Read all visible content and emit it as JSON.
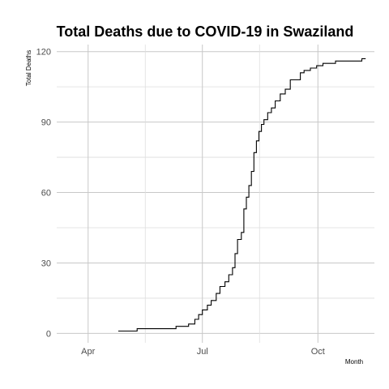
{
  "chart_data": {
    "type": "line",
    "title": "Total Deaths due to COVID-19 in Swaziland",
    "xlabel": "Month",
    "ylabel": "Total Deaths",
    "x_tick_labels": [
      "Apr",
      "Jul",
      "Oct"
    ],
    "x_tick_dates": [
      "2020-04-01",
      "2020-07-01",
      "2020-10-01"
    ],
    "y_ticks": [
      0,
      30,
      60,
      90,
      120
    ],
    "xlim": [
      "2020-03-07",
      "2020-11-15"
    ],
    "ylim": [
      -4,
      123
    ],
    "grid": true,
    "line_color": "#000000",
    "series": [
      {
        "x": [
          "2020-04-25",
          "2020-05-01",
          "2020-05-10",
          "2020-05-20",
          "2020-05-25",
          "2020-06-01",
          "2020-06-10",
          "2020-06-15",
          "2020-06-20",
          "2020-06-25",
          "2020-06-28",
          "2020-07-01",
          "2020-07-05",
          "2020-07-08",
          "2020-07-12",
          "2020-07-15",
          "2020-07-19",
          "2020-07-22",
          "2020-07-25",
          "2020-07-27",
          "2020-07-29",
          "2020-08-01",
          "2020-08-03",
          "2020-08-05",
          "2020-08-07",
          "2020-08-09",
          "2020-08-11",
          "2020-08-13",
          "2020-08-15",
          "2020-08-17",
          "2020-08-19",
          "2020-08-22",
          "2020-08-25",
          "2020-08-28",
          "2020-09-01",
          "2020-09-05",
          "2020-09-09",
          "2020-09-13",
          "2020-09-17",
          "2020-09-20",
          "2020-09-25",
          "2020-09-30",
          "2020-10-05",
          "2020-10-10",
          "2020-10-15",
          "2020-10-25",
          "2020-11-05"
        ],
        "y": [
          1,
          1,
          2,
          2,
          2,
          2,
          3,
          3,
          4,
          6,
          8,
          10,
          12,
          14,
          17,
          20,
          22,
          25,
          28,
          34,
          40,
          43,
          53,
          58,
          63,
          69,
          77,
          82,
          86,
          89,
          91,
          94,
          96,
          99,
          102,
          104,
          108,
          108,
          111,
          112,
          113,
          114,
          115,
          115,
          116,
          116,
          117
        ]
      }
    ]
  }
}
